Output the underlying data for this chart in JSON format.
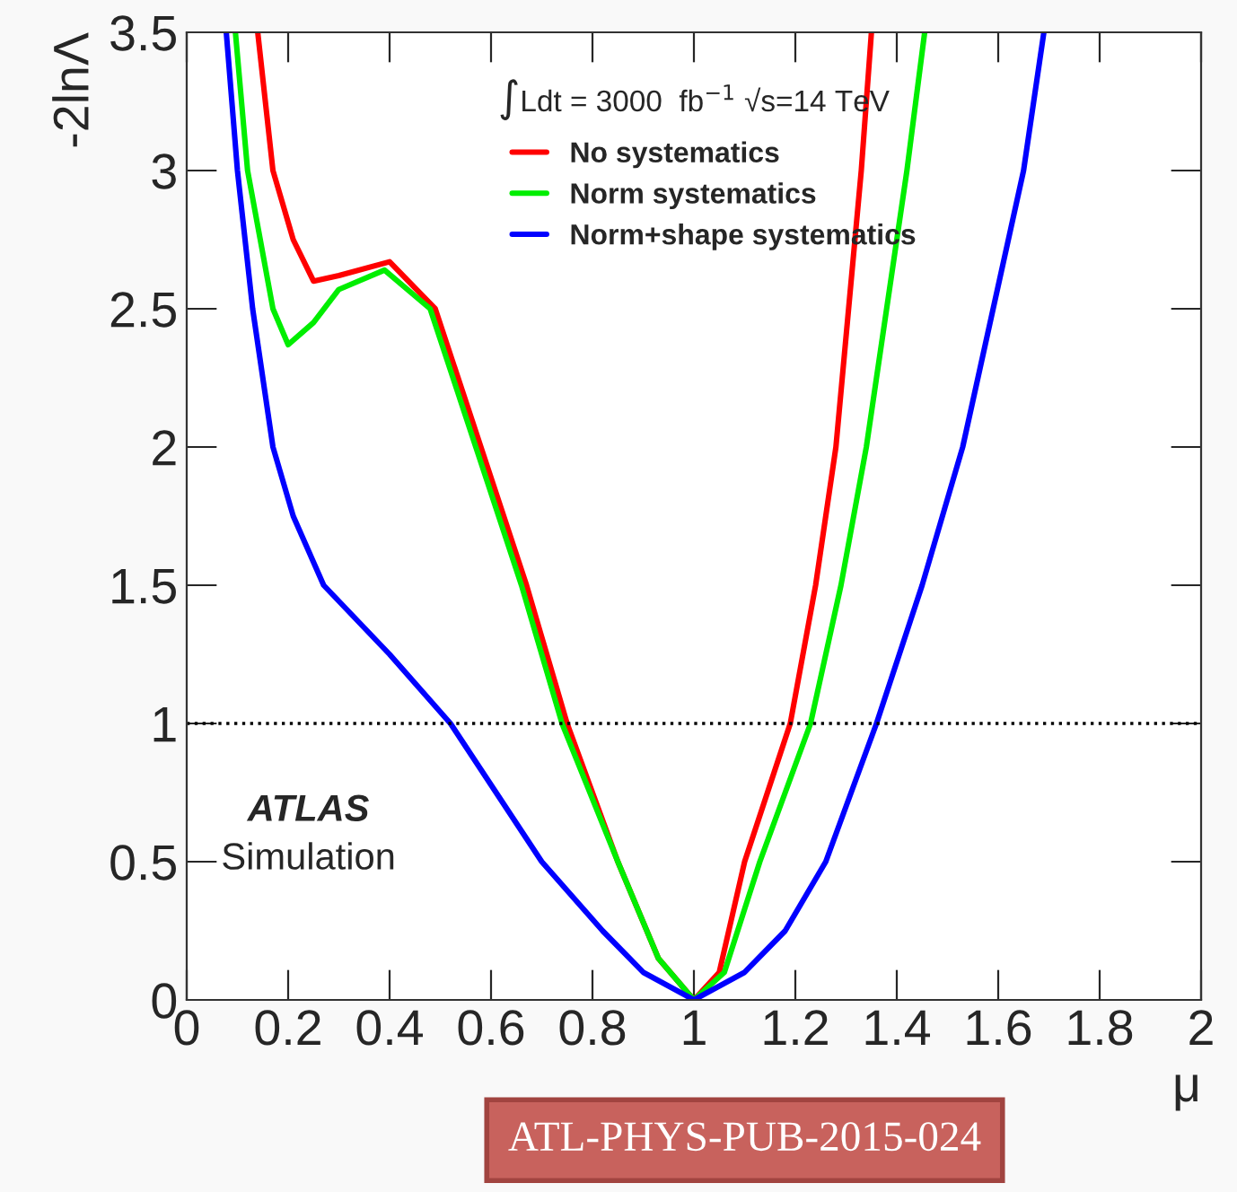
{
  "chart_data": {
    "type": "line",
    "xlabel": "μ",
    "ylabel": "-2lnΛ",
    "xlim": [
      0,
      2
    ],
    "ylim": [
      0,
      3.5
    ],
    "xticks": [
      0,
      0.2,
      0.4,
      0.6,
      0.8,
      1,
      1.2,
      1.4,
      1.6,
      1.8,
      2
    ],
    "yticks": [
      0,
      0.5,
      1,
      1.5,
      2,
      2.5,
      3,
      3.5
    ],
    "legend": "top",
    "grid": false,
    "line_style": "solid",
    "marker": "none",
    "series": [
      {
        "name": "No systematics",
        "color": "#ff0000",
        "x": [
          0.14,
          0.17,
          0.21,
          0.25,
          0.3,
          0.4,
          0.49,
          0.58,
          0.67,
          0.75,
          0.85,
          0.93,
          1,
          1.05,
          1.1,
          1.19,
          1.24,
          1.28,
          1.33,
          1.35
        ],
        "values": [
          3.5,
          3.0,
          2.75,
          2.6,
          2.62,
          2.67,
          2.5,
          2.0,
          1.5,
          1.0,
          0.5,
          0.15,
          0,
          0.1,
          0.5,
          1.0,
          1.5,
          2.0,
          3.0,
          3.5
        ]
      },
      {
        "name": "Norm systematics",
        "color": "#00ee00",
        "x": [
          0.096,
          0.12,
          0.17,
          0.2,
          0.25,
          0.3,
          0.39,
          0.48,
          0.57,
          0.66,
          0.74,
          0.85,
          0.93,
          1,
          1.06,
          1.13,
          1.23,
          1.29,
          1.34,
          1.42,
          1.455
        ],
        "values": [
          3.5,
          3.0,
          2.5,
          2.37,
          2.45,
          2.57,
          2.64,
          2.5,
          2.0,
          1.5,
          1.0,
          0.5,
          0.15,
          0,
          0.1,
          0.5,
          1.0,
          1.5,
          2.0,
          3.0,
          3.5
        ]
      },
      {
        "name": "Norm+shape systematics",
        "color": "#0000ff",
        "x": [
          0.078,
          0.1,
          0.13,
          0.17,
          0.21,
          0.27,
          0.4,
          0.52,
          0.7,
          0.82,
          0.9,
          1,
          1.1,
          1.18,
          1.26,
          1.36,
          1.45,
          1.53,
          1.65,
          1.69
        ],
        "values": [
          3.5,
          3.0,
          2.5,
          2.0,
          1.75,
          1.5,
          1.25,
          1.0,
          0.5,
          0.25,
          0.1,
          0,
          0.1,
          0.25,
          0.5,
          1.0,
          1.5,
          2.0,
          3.0,
          3.5
        ]
      }
    ],
    "ref_lines": [
      {
        "axis": "y",
        "value": 1,
        "color": "#000000",
        "line_style": "dotted"
      }
    ],
    "annotations": [
      "∫Ldt = 3000  fb$^{−1}$ √s=14 TeV",
      "ATLAS",
      "Simulation",
      "ATL-PHYS-PUB-2015-024"
    ]
  }
}
